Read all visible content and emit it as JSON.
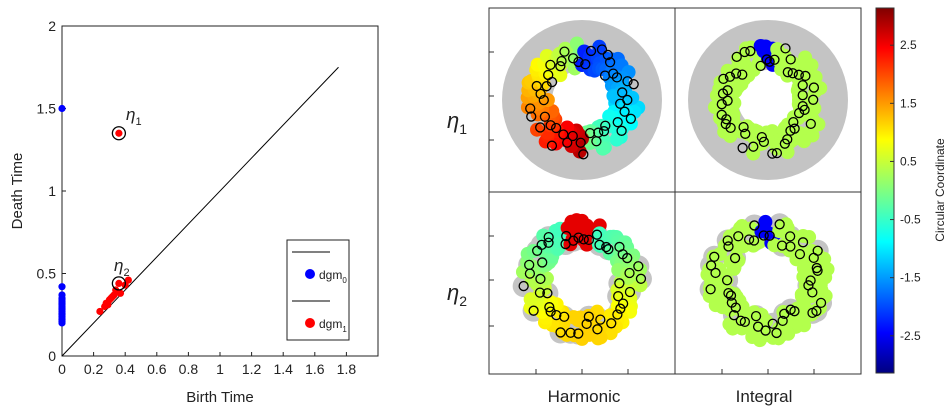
{
  "chart_data": [
    {
      "type": "scatter",
      "subtype": "persistence-diagram",
      "xlabel": "Birth Time",
      "ylabel": "Death Time",
      "xlim": [
        0,
        2.0
      ],
      "ylim": [
        0,
        2.0
      ],
      "xticks": [
        "0",
        "0.2",
        "0.4",
        "0.6",
        "0.8",
        "1",
        "1.2",
        "1.4",
        "1.6",
        "1.8"
      ],
      "yticks": [
        "0",
        "0.5",
        "1",
        "1.5",
        "2"
      ],
      "diagonal": {
        "from": [
          0,
          0
        ],
        "to": [
          1.75,
          1.75
        ]
      },
      "series": [
        {
          "name": "dgm0",
          "color": "#0000ff",
          "points": [
            [
              0,
              1.5
            ],
            [
              0,
              0.42
            ],
            [
              0,
              0.37
            ],
            [
              0,
              0.35
            ],
            [
              0,
              0.34
            ],
            [
              0,
              0.33
            ],
            [
              0,
              0.32
            ],
            [
              0,
              0.31
            ],
            [
              0,
              0.3
            ],
            [
              0,
              0.29
            ],
            [
              0,
              0.28
            ],
            [
              0,
              0.27
            ],
            [
              0,
              0.26
            ],
            [
              0,
              0.25
            ],
            [
              0,
              0.24
            ],
            [
              0,
              0.23
            ],
            [
              0,
              0.22
            ],
            [
              0,
              0.21
            ],
            [
              0,
              0.2
            ]
          ]
        },
        {
          "name": "dgm1",
          "color": "#ff0000",
          "points": [
            [
              0.36,
              1.35
            ],
            [
              0.36,
              0.44
            ],
            [
              0.24,
              0.27
            ],
            [
              0.27,
              0.3
            ],
            [
              0.29,
              0.31
            ],
            [
              0.3,
              0.34
            ],
            [
              0.31,
              0.35
            ],
            [
              0.33,
              0.37
            ],
            [
              0.34,
              0.4
            ],
            [
              0.37,
              0.38
            ],
            [
              0.4,
              0.43
            ],
            [
              0.42,
              0.46
            ],
            [
              0.28,
              0.32
            ],
            [
              0.32,
              0.36
            ]
          ]
        }
      ],
      "annotations": [
        {
          "label": "η1",
          "point": [
            0.36,
            1.35
          ]
        },
        {
          "label": "η2",
          "point": [
            0.36,
            0.44
          ]
        }
      ],
      "legend": {
        "placement": "lower-right",
        "entries": [
          "dgm0",
          "dgm1"
        ]
      }
    },
    {
      "type": "heatmap",
      "subtype": "circular-coordinate-panels",
      "rows": [
        "η1",
        "η2"
      ],
      "columns": [
        "Harmonic",
        "Integral"
      ],
      "colorbar": {
        "label": "Circular Coordinate",
        "range": [
          -3.14,
          3.14
        ],
        "ticks": [
          "2.5",
          "1.5",
          "0.5",
          "-0.5",
          "-1.5",
          "-2.5"
        ],
        "tick_values": [
          2.5,
          1.5,
          0.5,
          -0.5,
          -1.5,
          -2.5
        ]
      }
    }
  ],
  "labels": {
    "left_plot": {
      "xlabel": "Birth Time",
      "ylabel": "Death Time",
      "legend_dgm0": "dgm",
      "legend_dgm0_sub": "0",
      "legend_dgm1": "dgm",
      "legend_dgm1_sub": "1",
      "eta1": "η",
      "eta1_sub": "1",
      "eta2": "η",
      "eta2_sub": "2"
    },
    "grid": {
      "row1": "η",
      "row1_sub": "1",
      "row2": "η",
      "row2_sub": "2",
      "col1": "Harmonic",
      "col2": "Integral"
    },
    "colorbar": {
      "label": "Circular Coordinate"
    }
  }
}
